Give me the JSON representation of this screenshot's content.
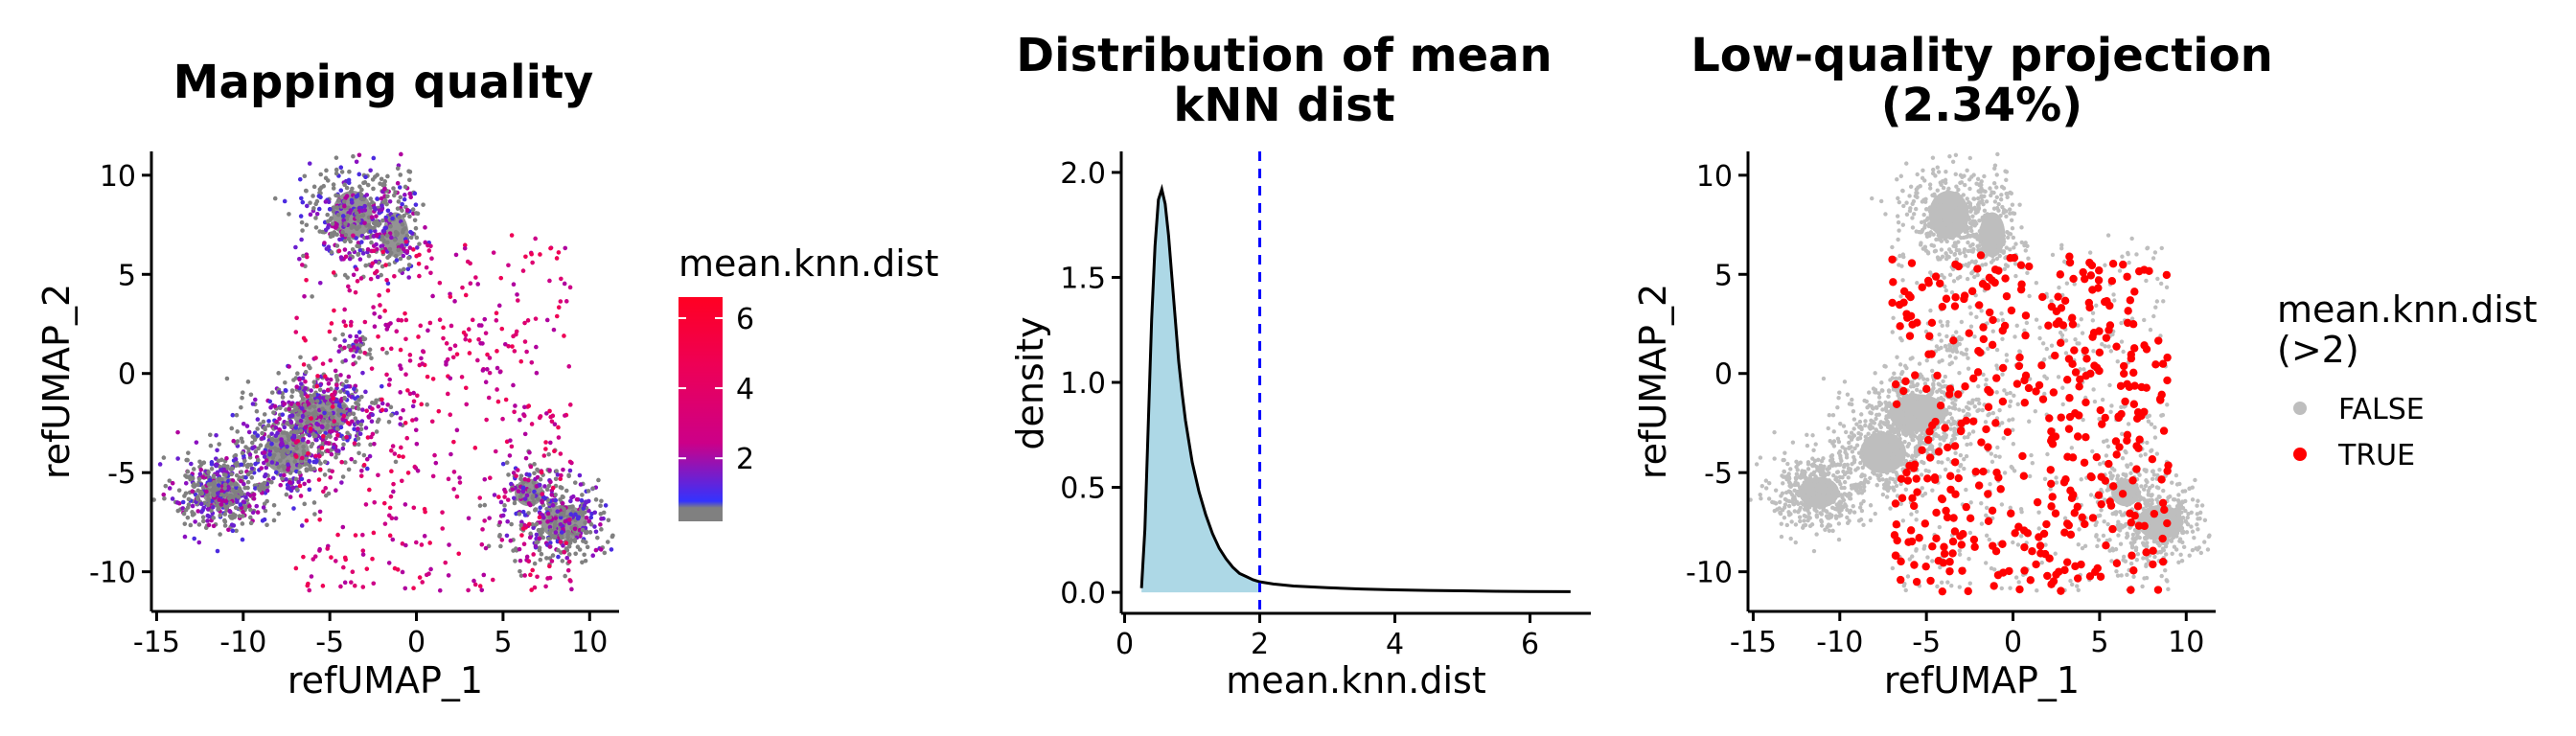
{
  "chart_data": [
    {
      "type": "scatter",
      "title": "Mapping quality",
      "xlabel": "refUMAP_1",
      "ylabel": "refUMAP_2",
      "xlim": [
        -15.3,
        11.7
      ],
      "ylim": [
        -12.0,
        11.2
      ],
      "xticks": [
        -15,
        -10,
        -5,
        0,
        5,
        10
      ],
      "yticks": [
        -10,
        -5,
        0,
        5,
        10
      ],
      "xtick_labels": [
        "-15",
        "-10",
        "-5",
        "0",
        "5",
        "10"
      ],
      "ytick_labels": [
        "-10",
        "-5",
        "0",
        "5",
        "10"
      ],
      "legend": {
        "title": "mean.knn.dist",
        "position": "right",
        "kind": "colorbar",
        "range": [
          0.2,
          6.6
        ],
        "ticks": [
          2,
          4,
          6
        ],
        "tick_labels": [
          "2",
          "4",
          "6"
        ],
        "colors": [
          "#808080",
          "#3333ff",
          "#cc0088",
          "#ff0022"
        ]
      },
      "clusters": [
        {
          "center": [
            -11.2,
            -6.0
          ],
          "color_value": "low",
          "dense": true
        },
        {
          "center": [
            -5.5,
            -2.0
          ],
          "color_value": "low",
          "dense": true
        },
        {
          "center": [
            -3.7,
            8.0
          ],
          "color_value": "low",
          "dense": true
        },
        {
          "center": [
            8.5,
            -7.5
          ],
          "color_value": "low",
          "dense": true
        }
      ]
    },
    {
      "type": "area",
      "title": "Distribution of mean kNN dist",
      "title_lines": [
        "Distribution of mean",
        "kNN dist"
      ],
      "xlabel": "mean.knn.dist",
      "ylabel": "density",
      "xlim": [
        -0.05,
        6.9
      ],
      "ylim": [
        -0.1,
        2.1
      ],
      "xticks": [
        0,
        2,
        4,
        6
      ],
      "yticks": [
        0.0,
        0.5,
        1.0,
        1.5,
        2.0
      ],
      "xtick_labels": [
        "0",
        "2",
        "4",
        "6"
      ],
      "ytick_labels": [
        "0.0",
        "0.5",
        "1.0",
        "1.5",
        "2.0"
      ],
      "fill_color": "#add8e6",
      "threshold": {
        "x": 2,
        "color": "#0000ff",
        "style": "dashed"
      },
      "x": [
        0.25,
        0.3,
        0.35,
        0.4,
        0.45,
        0.5,
        0.55,
        0.6,
        0.65,
        0.7,
        0.75,
        0.8,
        0.85,
        0.9,
        0.95,
        1.0,
        1.1,
        1.2,
        1.3,
        1.4,
        1.5,
        1.6,
        1.7,
        1.8,
        1.9,
        2.0,
        2.2,
        2.5,
        3.0,
        3.5,
        4.0,
        4.5,
        5.0,
        5.5,
        6.0,
        6.6
      ],
      "y": [
        0.02,
        0.3,
        0.8,
        1.3,
        1.65,
        1.87,
        1.92,
        1.85,
        1.7,
        1.5,
        1.3,
        1.1,
        0.95,
        0.82,
        0.72,
        0.62,
        0.48,
        0.37,
        0.28,
        0.21,
        0.16,
        0.12,
        0.09,
        0.075,
        0.06,
        0.05,
        0.04,
        0.03,
        0.022,
        0.016,
        0.012,
        0.009,
        0.007,
        0.005,
        0.004,
        0.003
      ]
    },
    {
      "type": "scatter",
      "title": "Low-quality projection (2.34%)",
      "title_lines": [
        "Low-quality projection",
        "(2.34%)"
      ],
      "xlabel": "refUMAP_1",
      "ylabel": "refUMAP_2",
      "xlim": [
        -15.3,
        11.7
      ],
      "ylim": [
        -12.0,
        11.2
      ],
      "xticks": [
        -15,
        -10,
        -5,
        0,
        5,
        10
      ],
      "yticks": [
        -10,
        -5,
        0,
        5,
        10
      ],
      "xtick_labels": [
        "-15",
        "-10",
        "-5",
        "0",
        "5",
        "10"
      ],
      "ytick_labels": [
        "-10",
        "-5",
        "0",
        "5",
        "10"
      ],
      "legend": {
        "title_lines": [
          "mean.knn.dist",
          "(>2)"
        ],
        "position": "right",
        "kind": "categorical",
        "items": [
          {
            "label": "FALSE",
            "color": "#bebebe"
          },
          {
            "label": "TRUE",
            "color": "#ff0000"
          }
        ]
      },
      "low_quality_percent": 2.34
    }
  ]
}
